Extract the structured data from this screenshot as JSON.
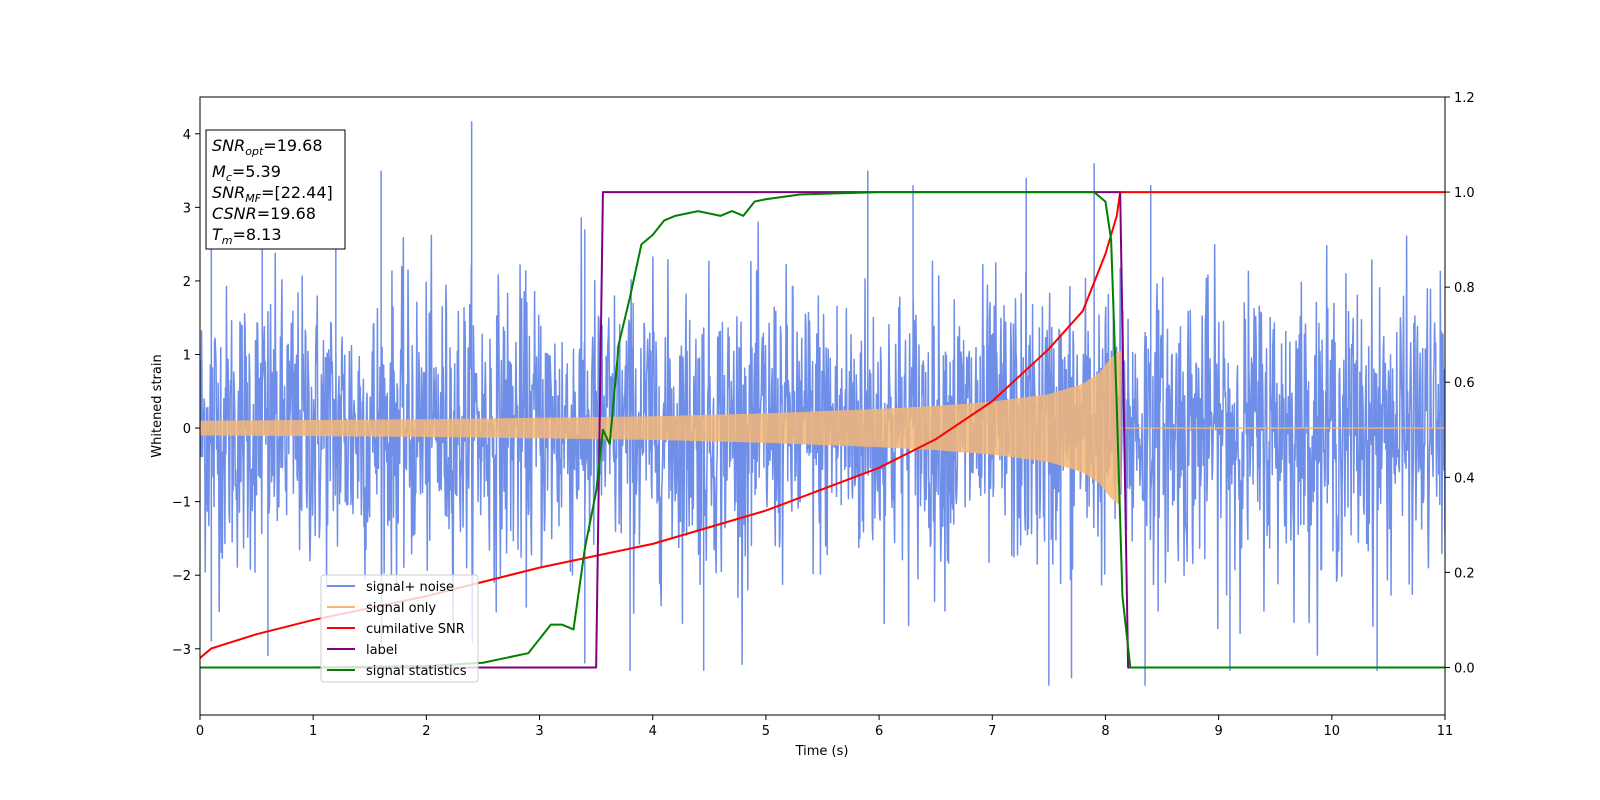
{
  "chart_data": {
    "type": "line",
    "xlabel": "Time (s)",
    "ylabel": "Whitened strain",
    "xlim": [
      0,
      11
    ],
    "ylim_left": [
      -3.9,
      4.5
    ],
    "ylim_right": [
      -0.1,
      1.2
    ],
    "x_ticks": [
      "0",
      "1",
      "2",
      "3",
      "4",
      "5",
      "6",
      "7",
      "8",
      "9",
      "10",
      "11"
    ],
    "y_ticks_left": [
      "−3",
      "−2",
      "−1",
      "0",
      "1",
      "2",
      "3",
      "4"
    ],
    "y_ticks_right": [
      "0.0",
      "0.2",
      "0.4",
      "0.6",
      "0.8",
      "1.0",
      "1.2"
    ],
    "grid": false,
    "legend_position": "lower-left",
    "annotation": {
      "lines": [
        {
          "sym": "SNR",
          "sub": "opt",
          "val": "=19.68"
        },
        {
          "sym": "M",
          "sub": "c",
          "val": "=5.39"
        },
        {
          "sym": "SNR",
          "sub": "MF",
          "val": "=[22.44]"
        },
        {
          "sym": "CSNR",
          "sub": "",
          "val": "=19.68"
        },
        {
          "sym": "T",
          "sub": "m",
          "val": "=8.13"
        }
      ]
    },
    "series": [
      {
        "name": "signal+ noise",
        "axis": "left",
        "color": "#6f8ee8",
        "note": "noisy whitened strain, roughly ±1 σ with peaks up to ~4.2 at t≈2.4 s and lows near −3.5 at t≈7.5 s",
        "peaks": [
          [
            0.1,
            2.6
          ],
          [
            0.55,
            2.7
          ],
          [
            1.2,
            3.2
          ],
          [
            1.6,
            3.5
          ],
          [
            2.4,
            4.17
          ],
          [
            3.4,
            2.7
          ],
          [
            5.9,
            3.5
          ],
          [
            6.3,
            3.3
          ],
          [
            7.3,
            3.4
          ],
          [
            7.9,
            3.6
          ],
          [
            8.4,
            3.3
          ],
          [
            0.1,
            -2.9
          ],
          [
            0.6,
            -3.1
          ],
          [
            3.4,
            -3.2
          ],
          [
            3.8,
            -3.3
          ],
          [
            4.45,
            -3.3
          ],
          [
            7.5,
            -3.5
          ],
          [
            7.7,
            -3.4
          ],
          [
            8.35,
            -3.5
          ],
          [
            9.1,
            -3.3
          ],
          [
            10.4,
            -3.3
          ]
        ]
      },
      {
        "name": "signal only",
        "axis": "left",
        "color": "#f5b777",
        "envelope": {
          "t": [
            0,
            1,
            2,
            3,
            4,
            5,
            6,
            6.5,
            7,
            7.5,
            7.8,
            7.95,
            8.05,
            8.13
          ],
          "amp": [
            0.1,
            0.11,
            0.12,
            0.14,
            0.16,
            0.2,
            0.26,
            0.3,
            0.36,
            0.46,
            0.6,
            0.75,
            0.95,
            1.05
          ]
        }
      },
      {
        "name": "cumilative SNR",
        "axis": "right",
        "color": "#ff0000",
        "x": [
          0,
          0.1,
          0.5,
          1,
          2,
          3,
          4,
          5,
          6,
          6.5,
          7,
          7.5,
          7.8,
          8.0,
          8.1,
          8.13,
          11
        ],
        "y": [
          0.02,
          0.04,
          0.07,
          0.1,
          0.15,
          0.21,
          0.26,
          0.33,
          0.42,
          0.48,
          0.56,
          0.67,
          0.75,
          0.87,
          0.95,
          1.0,
          1.0
        ]
      },
      {
        "name": "label",
        "axis": "right",
        "color": "#800080",
        "x": [
          0,
          3.5,
          3.56,
          8.13,
          8.2,
          11
        ],
        "y": [
          0,
          0,
          1,
          1,
          0,
          0
        ]
      },
      {
        "name": "signal statistics",
        "axis": "right",
        "color": "#008000",
        "x": [
          0,
          1,
          2,
          2.5,
          2.7,
          2.9,
          3.0,
          3.1,
          3.2,
          3.3,
          3.4,
          3.5,
          3.56,
          3.62,
          3.7,
          3.8,
          3.9,
          4.0,
          4.1,
          4.2,
          4.4,
          4.6,
          4.7,
          4.8,
          4.9,
          5.0,
          5.3,
          6,
          7,
          7.9,
          8.0,
          8.05,
          8.1,
          8.15,
          8.22,
          11
        ],
        "y": [
          0,
          0,
          0.003,
          0.01,
          0.02,
          0.03,
          0.06,
          0.09,
          0.09,
          0.08,
          0.25,
          0.37,
          0.5,
          0.47,
          0.68,
          0.78,
          0.89,
          0.91,
          0.94,
          0.95,
          0.96,
          0.95,
          0.96,
          0.95,
          0.98,
          0.985,
          0.995,
          1.0,
          1.0,
          1.0,
          0.98,
          0.9,
          0.55,
          0.15,
          0.0,
          0.0
        ]
      }
    ]
  }
}
